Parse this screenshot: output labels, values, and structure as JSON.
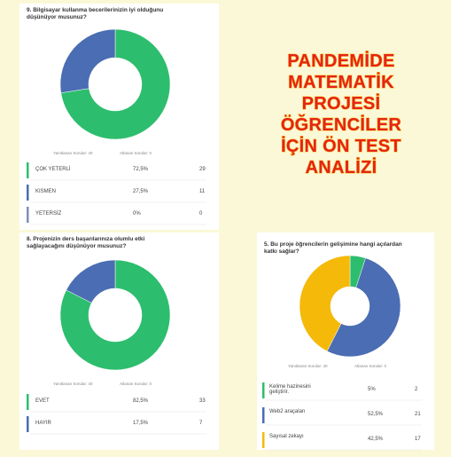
{
  "poster": {
    "lines": [
      "PANDEMİDE",
      "MATEMATİK",
      "PROJESİ",
      "ÖĞRENCİLER",
      "İÇİN ÖN TEST",
      "ANALİZİ"
    ]
  },
  "chart_data": [
    {
      "type": "pie",
      "donut": true,
      "title": "9. Bilgisayar kullanma becerilerinizin iyi olduğunu düşünüyor musunuz?",
      "answered": "Yanıtlanan Sorular: 40",
      "skipped": "Atlanan Sorular: 0",
      "categories": [
        "ÇOK YETERLİ",
        "KISMEN",
        "YETERSİZ"
      ],
      "values": [
        72.5,
        27.5,
        0
      ],
      "value_labels": [
        "72,5%",
        "27,5%",
        "0%"
      ],
      "counts": [
        29,
        11,
        0
      ],
      "colors": [
        "#2dbd6e",
        "#4a6db3",
        "#7f8fb8"
      ]
    },
    {
      "type": "pie",
      "donut": true,
      "title": "8. Projenizin ders başarılarınıza olumlu etki sağlayacağını düşünüyor musunuz?",
      "answered": "Yanıtlanan Sorular: 40",
      "skipped": "Atlanan Sorular: 0",
      "categories": [
        "EVET",
        "HAYIR"
      ],
      "values": [
        82.5,
        17.5
      ],
      "value_labels": [
        "82,5%",
        "17,5%"
      ],
      "counts": [
        33,
        7
      ],
      "colors": [
        "#2dbd6e",
        "#4a6db3"
      ]
    },
    {
      "type": "pie",
      "donut": true,
      "title": "5. Bu proje öğrencilerin gelişimine hangi açılardan katkı sağlar?",
      "answered": "Yanıtlanan Sorular: 40",
      "skipped": "Atlanan Sorular: 0",
      "categories": [
        "Kelime hazinesini geliştirir.",
        "Web2 araçaları",
        "Sayısal zekayı"
      ],
      "values": [
        5,
        52.5,
        42.5
      ],
      "value_labels": [
        "5%",
        "52,5%",
        "42,5%"
      ],
      "counts": [
        2,
        21,
        17
      ],
      "colors": [
        "#2dbd6e",
        "#4a6db3",
        "#f5b90a"
      ]
    }
  ]
}
